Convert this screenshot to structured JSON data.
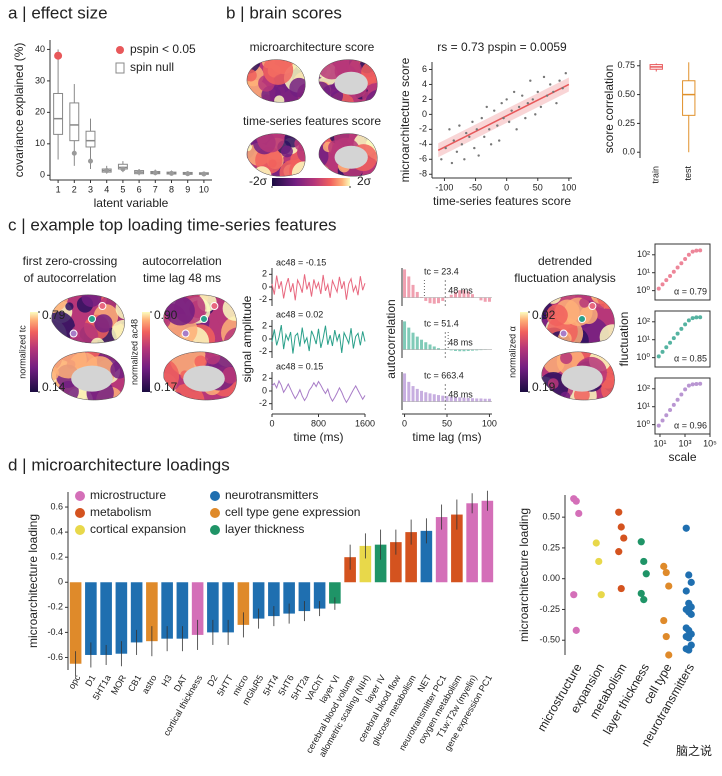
{
  "chart_data": [
    {
      "type": "boxplot",
      "title": "a | effect size",
      "ylabel": "covariance explained (%)",
      "xlabel": "latent variable",
      "categories": [
        "1",
        "2",
        "3",
        "4",
        "5",
        "6",
        "7",
        "8",
        "9",
        "10"
      ],
      "boxes": [
        [
          5,
          13,
          18,
          26,
          40
        ],
        [
          3,
          11,
          16,
          23,
          29
        ],
        [
          2,
          9,
          11,
          14,
          18
        ],
        [
          0.5,
          1,
          1.5,
          2,
          3
        ],
        [
          1,
          2,
          2.5,
          3.5,
          4.5
        ],
        [
          0,
          0.5,
          1,
          1.5,
          2
        ],
        [
          0,
          0.5,
          0.8,
          1.2,
          1.8
        ],
        [
          0,
          0.4,
          0.7,
          1,
          1.5
        ],
        [
          0,
          0.3,
          0.6,
          0.9,
          1.3
        ],
        [
          0,
          0.3,
          0.5,
          0.8,
          1.2
        ]
      ],
      "color": "#888888",
      "points": [
        38,
        7,
        4.5,
        1.5,
        2,
        1,
        0.8,
        0.6,
        0.5,
        0.4
      ],
      "significant": [
        true,
        false,
        false,
        false,
        false,
        false,
        false,
        false,
        false,
        false
      ],
      "sig_color": "#e8585a",
      "null_color": "#9a9a9a",
      "legend": [
        "pspin < 0.05",
        "spin null"
      ],
      "ylim": [
        -1.5,
        43
      ],
      "yticks": [
        0,
        10,
        20,
        30,
        40
      ]
    },
    {
      "type": "brainmap",
      "title": "b | brain scores",
      "maps": [
        "microarchitecture score",
        "time-series features score"
      ],
      "clim": [
        -2,
        2
      ],
      "cticks": [
        {
          "value": -2,
          "label": "-2σ"
        },
        {
          "value": 2,
          "label": "2σ"
        }
      ]
    },
    {
      "type": "scatter",
      "title": "rs = 0.73  pspin = 0.0059",
      "xlabel": "time-series features score",
      "ylabel": "microarchitecture score",
      "x": [
        -105,
        -98,
        -92,
        -88,
        -85,
        -80,
        -76,
        -72,
        -68,
        -65,
        -60,
        -55,
        -52,
        -48,
        -45,
        -40,
        -36,
        -32,
        -28,
        -25,
        -20,
        -15,
        -12,
        -8,
        -5,
        0,
        4,
        8,
        12,
        16,
        20,
        25,
        30,
        34,
        38,
        42,
        46,
        50,
        55,
        60,
        65,
        70,
        75,
        80,
        85,
        90,
        95
      ],
      "y": [
        -6,
        -4.5,
        -2,
        -6.5,
        -3.5,
        -5,
        -1.5,
        -4,
        -6,
        -2.5,
        -3,
        -1,
        -4.5,
        -2,
        -5.5,
        -0.5,
        -3,
        1,
        -2,
        -4,
        0.5,
        -1.5,
        -3.5,
        1.5,
        -0.5,
        2,
        -1,
        0.5,
        3,
        -2,
        1,
        2.5,
        -0.5,
        1.5,
        4.5,
        2,
        0,
        3,
        1,
        5,
        2.5,
        4,
        3,
        1.5,
        4.5,
        3.5,
        5.5
      ],
      "color": "#777777",
      "fit": {
        "x": [
          -110,
          100
        ],
        "y": [
          -4.8,
          4.0
        ],
        "color": "#e8585a"
      },
      "xlim": [
        -120,
        105
      ],
      "ylim": [
        -8.5,
        7
      ],
      "xticks": [
        -100,
        -50,
        0,
        50,
        100
      ],
      "yticks": [
        -8,
        -6,
        -4,
        -2,
        0,
        2,
        4,
        6
      ]
    },
    {
      "type": "boxplot",
      "ylabel": "score correlation",
      "categories": [
        "train",
        "test"
      ],
      "boxes": [
        [
          0.7,
          0.72,
          0.74,
          0.76,
          0.77
        ],
        [
          0,
          0.32,
          0.5,
          0.62,
          0.78
        ]
      ],
      "box_colors": [
        "#e8585a",
        "#e0902a"
      ],
      "ylim": [
        -0.05,
        0.8
      ],
      "yticks": [
        {
          "value": 0,
          "label": "0.0"
        },
        0.25,
        {
          "value": 0.5,
          "label": "0.50"
        },
        0.75
      ]
    },
    {
      "type": "brainmaps",
      "title": "c | example top loading time-series features",
      "maps": [
        {
          "label": [
            "first zero-crossing",
            "of autocorrelation"
          ],
          "colorbar_label": "normalized tc",
          "cticks": [
            0.14,
            0.79
          ]
        },
        {
          "label": [
            "autocorrelation",
            "time lag 48 ms"
          ],
          "colorbar_label": "normalized ac48",
          "cticks": [
            0.17,
            {
              "value": 0.9,
              "label": "0.90"
            }
          ]
        },
        {
          "label": [
            "detrended",
            "fluctuation analysis"
          ],
          "colorbar_label": "normalized α",
          "cticks": [
            0.19,
            0.92
          ]
        }
      ]
    },
    {
      "type": "line",
      "xlabel": "time (ms)",
      "ylabel": "signal amplitude",
      "x": [
        0,
        40,
        80,
        120,
        160,
        200,
        240,
        280,
        320,
        360,
        400,
        440,
        480,
        520,
        560,
        600,
        640,
        680,
        720,
        760,
        800,
        840,
        880,
        920,
        960,
        1000,
        1040,
        1080,
        1120,
        1160,
        1200,
        1240,
        1280,
        1320,
        1360,
        1400,
        1440,
        1480,
        1520,
        1560,
        1600
      ],
      "series": [
        {
          "name": "ac48 = -0.15",
          "color": "#e8687f",
          "values": [
            0.5,
            -1.2,
            1.8,
            -0.3,
            0.9,
            -1.8,
            0.2,
            1.4,
            -0.8,
            0.6,
            -2.1,
            1.1,
            0.3,
            -0.9,
            2.0,
            -0.4,
            0.8,
            -1.5,
            1.2,
            -0.2,
            0.7,
            -1.1,
            1.9,
            -0.6,
            0.4,
            -1.7,
            1.0,
            0.1,
            -0.8,
            1.6,
            -0.3,
            0.9,
            -2.0,
            0.5,
            1.3,
            -0.7,
            0.2,
            -1.3,
            1.7,
            -0.5,
            0.6
          ]
        },
        {
          "name": "ac48 = 0.02",
          "color": "#2aa08a",
          "values": [
            -0.4,
            1.5,
            -1.0,
            0.3,
            2.2,
            -1.6,
            0.7,
            -0.2,
            1.1,
            -2.3,
            0.5,
            0.9,
            -1.2,
            1.8,
            -0.6,
            0.2,
            -1.9,
            1.3,
            0.4,
            -0.8,
            1.6,
            -1.4,
            0.1,
            2.1,
            -0.9,
            0.6,
            -1.1,
            1.4,
            -0.3,
            0.8,
            -2.2,
            1.0,
            0.2,
            -0.7,
            1.7,
            -1.5,
            0.4,
            0.9,
            -1.0,
            1.2,
            -0.4
          ]
        },
        {
          "name": "ac48 = 0.15",
          "color": "#a87cc7",
          "values": [
            0.8,
            1.2,
            0.5,
            1.6,
            0.9,
            -0.2,
            0.4,
            1.1,
            0.3,
            -0.5,
            -1.2,
            -0.6,
            0.2,
            -0.8,
            -1.5,
            -0.9,
            0.1,
            0.6,
            1.3,
            0.7,
            1.5,
            0.9,
            0.2,
            -0.4,
            0.3,
            -0.9,
            -1.6,
            -1.0,
            -0.3,
            0.5,
            -0.2,
            -1.1,
            -1.8,
            -1.2,
            -0.5,
            0.2,
            0.8,
            0.1,
            -0.6,
            -1.3,
            -0.7
          ]
        }
      ],
      "xlim": [
        0,
        1600
      ],
      "ylim": [
        -3,
        3
      ],
      "xticks": [
        0,
        800,
        1600
      ],
      "yticks": [
        -2,
        0,
        2
      ]
    },
    {
      "type": "bar",
      "xlabel": "time lag (ms)",
      "ylabel": "autocorrelation",
      "x": [
        0,
        5,
        10,
        15,
        20,
        25,
        30,
        35,
        40,
        45,
        50,
        55,
        60,
        65,
        70,
        75,
        80,
        85,
        90,
        95,
        100
      ],
      "series": [
        {
          "color": "#f0a0b0",
          "values": [
            1,
            0.75,
            0.45,
            0.2,
            0.02,
            -0.12,
            -0.2,
            -0.22,
            -0.2,
            -0.12,
            -0.02,
            0.1,
            0.2,
            0.26,
            0.27,
            0.22,
            0.12,
            0,
            -0.1,
            -0.15,
            -0.15
          ],
          "tc": {
            "value": 23.4,
            "label": "tc = 23.4"
          }
        },
        {
          "color": "#80cbb8",
          "values": [
            1,
            0.78,
            0.6,
            0.46,
            0.35,
            0.26,
            0.18,
            0.11,
            0.05,
            0.01,
            -0.01,
            -0.03,
            -0.05,
            -0.06,
            -0.06,
            -0.05,
            -0.04,
            -0.03,
            -0.02,
            -0.01,
            0
          ],
          "tc": {
            "value": 51.4,
            "label": "tc = 51.4"
          }
        },
        {
          "color": "#c7aee0",
          "values": [
            1,
            0.7,
            0.55,
            0.45,
            0.38,
            0.33,
            0.29,
            0.26,
            0.23,
            0.21,
            0.19,
            0.17,
            0.16,
            0.15,
            0.14,
            0.13,
            0.12,
            0.11,
            0.11,
            0.1,
            0.1
          ],
          "tc": {
            "value": 663.4,
            "label": "tc = 663.4"
          }
        }
      ],
      "marker": {
        "value": 48,
        "label": "48 ms"
      },
      "xlim": [
        -3,
        103
      ],
      "ylim": [
        -0.3,
        1.05
      ],
      "xticks": [
        0,
        50,
        100
      ]
    },
    {
      "type": "scatter-log",
      "xlabel": "scale",
      "ylabel": "fluctuation",
      "xscale": "log",
      "yscale": "log",
      "x": [
        8,
        16,
        32,
        64,
        128,
        256,
        512,
        1024,
        2048,
        4096,
        8192,
        16384
      ],
      "series": [
        {
          "name": "α = 0.79",
          "color": "#e8687f",
          "values": [
            1.29,
            2.23,
            3.84,
            6.6,
            11.4,
            19.6,
            33.8,
            58,
            100,
            150,
            170,
            175
          ]
        },
        {
          "name": "α = 0.85",
          "color": "#2aa08a",
          "values": [
            1.17,
            2.1,
            3.8,
            6.8,
            12.3,
            22,
            40,
            72,
            120,
            160,
            175,
            180
          ]
        },
        {
          "name": "α = 0.96",
          "color": "#a87cc7",
          "values": [
            0.88,
            1.71,
            3.33,
            6.5,
            12.6,
            24.5,
            47.7,
            93,
            150,
            175,
            185,
            190
          ]
        }
      ],
      "xlim": [
        4,
        100000
      ],
      "ylim": [
        0.3,
        400
      ],
      "xticks": [
        {
          "value": 10,
          "label": "10¹"
        },
        {
          "value": 1000,
          "label": "10³"
        },
        {
          "value": 100000,
          "label": "10⁵"
        }
      ],
      "yticks": [
        {
          "value": 1,
          "label": "10⁰"
        },
        {
          "value": 10,
          "label": "10¹"
        },
        {
          "value": 100,
          "label": "10²"
        }
      ]
    },
    {
      "type": "errorbar",
      "title": "d | microarchitecture loadings",
      "ylabel": "microarchitecture loading",
      "legend": [
        {
          "name": "microstructure",
          "color": "#d46fb8"
        },
        {
          "name": "metabolism",
          "color": "#d4531f"
        },
        {
          "name": "cortical expansion",
          "color": "#e8d84a"
        },
        {
          "name": "neurotransmitters",
          "color": "#1f6fb0"
        },
        {
          "name": "cell type gene expression",
          "color": "#df8a2a"
        },
        {
          "name": "layer thickness",
          "color": "#1f9467"
        }
      ],
      "categories": [
        "opc",
        "D1",
        "5HT1a",
        "MOR",
        "CB1",
        "astro",
        "H3",
        "DAT",
        "cortical thickness",
        "D2",
        "5HTT",
        "micro",
        "mGluR5",
        "5HT4",
        "5HT6",
        "5HT2a",
        "VAChT",
        "layer VI",
        "cerebral blood volume",
        "allometric scaling (NIH)",
        "layer IV",
        "cerebral blood flow",
        "glucose metabolism",
        "NET",
        "neurotransmitter PC1",
        "oxygen metabolism",
        "T1w:T2w (myelin)",
        "gene expression PC1"
      ],
      "values": [
        -0.65,
        -0.58,
        -0.58,
        -0.57,
        -0.48,
        -0.47,
        -0.45,
        -0.45,
        -0.42,
        -0.4,
        -0.4,
        -0.34,
        -0.29,
        -0.27,
        -0.25,
        -0.23,
        -0.21,
        -0.17,
        0.2,
        0.29,
        0.3,
        0.32,
        0.4,
        0.41,
        0.52,
        0.54,
        0.63,
        0.65
      ],
      "errors": [
        0.1,
        0.1,
        0.08,
        0.1,
        0.1,
        0.12,
        0.1,
        0.1,
        0.12,
        0.1,
        0.1,
        0.1,
        0.08,
        0.08,
        0.08,
        0.08,
        0.06,
        0.05,
        0.1,
        0.1,
        0.12,
        0.1,
        0.1,
        0.1,
        0.1,
        0.12,
        0.08,
        0.08
      ],
      "groups": [
        4,
        3,
        3,
        3,
        3,
        4,
        3,
        3,
        0,
        3,
        3,
        4,
        3,
        3,
        3,
        3,
        3,
        5,
        1,
        2,
        5,
        1,
        1,
        3,
        0,
        1,
        0,
        0
      ],
      "ylim": [
        -0.7,
        0.72
      ],
      "yticks": [
        -0.6,
        -0.4,
        -0.2,
        0,
        0.2,
        0.4,
        0.6
      ]
    },
    {
      "type": "strip",
      "ylabel": "microarchitecture loading",
      "series": [
        {
          "name": "microstructure",
          "color": "#d46fb8",
          "values": [
            0.65,
            0.63,
            0.53,
            -0.13,
            -0.42
          ]
        },
        {
          "name": "expansion",
          "color": "#e8d84a",
          "values": [
            0.29,
            0.14,
            -0.13
          ]
        },
        {
          "name": "metabolism",
          "color": "#d4531f",
          "values": [
            0.54,
            0.42,
            0.33,
            0.22,
            -0.08
          ]
        },
        {
          "name": "layer thickness",
          "color": "#1f9467",
          "values": [
            0.3,
            0.14,
            0.04,
            -0.12,
            -0.17
          ]
        },
        {
          "name": "cell type",
          "color": "#df8a2a",
          "values": [
            0.1,
            0.05,
            -0.06,
            -0.34,
            -0.47,
            -0.62
          ]
        },
        {
          "name": "neurotransmitters",
          "color": "#1f6fb0",
          "values": [
            0.41,
            0.03,
            -0.03,
            -0.1,
            -0.2,
            -0.23,
            -0.25,
            -0.27,
            -0.29,
            -0.4,
            -0.42,
            -0.45,
            -0.47,
            -0.48,
            -0.54,
            -0.57,
            -0.58
          ]
        }
      ],
      "ylim": [
        -0.62,
        0.68
      ],
      "yticks": [
        {
          "value": -0.5,
          "label": "-0.50"
        },
        -0.25,
        {
          "value": 0,
          "label": "0.00"
        },
        0.25,
        {
          "value": 0.5,
          "label": "0.50"
        }
      ]
    }
  ],
  "watermark": "脑之说"
}
